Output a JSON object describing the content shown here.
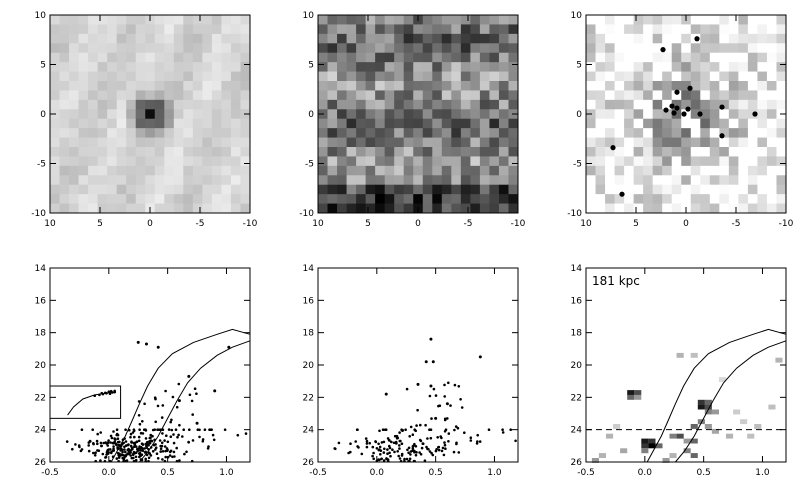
{
  "chart_data": [
    {
      "type": "heatmap",
      "xlim": [
        10,
        -10
      ],
      "ylim": [
        -10,
        10
      ],
      "xticks": [
        "10",
        "5",
        "0",
        "-5",
        "-10"
      ],
      "yticks": [
        "-10",
        "-5",
        "0",
        "5",
        "10"
      ],
      "pattern": "central-peak",
      "peak": [
        0,
        0
      ],
      "grid": 21
    },
    {
      "type": "heatmap",
      "xlim": [
        10,
        -10
      ],
      "ylim": [
        -10,
        10
      ],
      "xticks": [
        "10",
        "5",
        "0",
        "-5",
        "-10"
      ],
      "yticks": [
        "-10",
        "-5",
        "0",
        "5",
        "10"
      ],
      "pattern": "noise",
      "grid": 21
    },
    {
      "type": "heatmap",
      "xlim": [
        10,
        -10
      ],
      "ylim": [
        -10,
        10
      ],
      "xticks": [
        "10",
        "5",
        "0",
        "-5",
        "-10"
      ],
      "yticks": [
        "-10",
        "-5",
        "0",
        "5",
        "10"
      ],
      "pattern": "diffuse-center",
      "grid": 21,
      "points": [
        [
          2.3,
          6.5
        ],
        [
          -1.1,
          7.6
        ],
        [
          0.9,
          2.2
        ],
        [
          -0.4,
          2.6
        ],
        [
          1.4,
          0.8
        ],
        [
          0.9,
          0.6
        ],
        [
          2.0,
          0.4
        ],
        [
          1.2,
          0.1
        ],
        [
          -0.2,
          0.5
        ],
        [
          0.2,
          0.0
        ],
        [
          -1.4,
          0.0
        ],
        [
          -3.6,
          0.7
        ],
        [
          -6.9,
          0.0
        ],
        [
          7.3,
          -3.4
        ],
        [
          -3.6,
          -2.2
        ],
        [
          6.4,
          -8.1
        ]
      ]
    },
    {
      "type": "scatter",
      "xlim": [
        -0.5,
        1.2
      ],
      "ylim": [
        26,
        14
      ],
      "xticks": [
        "-0.5",
        "0.0",
        "0.5",
        "1.0"
      ],
      "yticks": [
        "14",
        "16",
        "18",
        "20",
        "22",
        "24",
        "26"
      ],
      "seed": 11,
      "count": 320,
      "bright": [
        [
          0.25,
          18.6
        ],
        [
          0.32,
          18.7
        ],
        [
          0.42,
          18.9
        ],
        [
          1.02,
          18.9
        ],
        [
          0.6,
          22.2
        ],
        [
          0.75,
          23.6
        ],
        [
          0.9,
          21.6
        ],
        [
          0.68,
          20.7
        ]
      ],
      "isochrones": [
        [
          [
            0.02,
            26.0
          ],
          [
            0.08,
            25.2
          ],
          [
            0.14,
            24.4
          ],
          [
            0.2,
            23.4
          ],
          [
            0.26,
            22.4
          ],
          [
            0.33,
            21.3
          ],
          [
            0.42,
            20.2
          ],
          [
            0.54,
            19.3
          ],
          [
            0.72,
            18.6
          ],
          [
            0.92,
            18.1
          ],
          [
            1.05,
            17.8
          ],
          [
            1.2,
            18.1
          ]
        ],
        [
          [
            0.26,
            26.0
          ],
          [
            0.34,
            25.3
          ],
          [
            0.42,
            24.4
          ],
          [
            0.5,
            23.3
          ],
          [
            0.58,
            22.2
          ],
          [
            0.67,
            21.1
          ],
          [
            0.78,
            20.2
          ],
          [
            0.92,
            19.4
          ],
          [
            1.05,
            18.9
          ],
          [
            1.2,
            18.5
          ]
        ]
      ],
      "inset": {
        "box": [
          [
            -0.5,
            21.3
          ],
          [
            0.1,
            23.3
          ]
        ],
        "points": [
          [
            -0.02,
            21.75
          ],
          [
            0.0,
            21.65
          ],
          [
            0.03,
            21.7
          ],
          [
            -0.05,
            21.8
          ],
          [
            0.02,
            21.62
          ],
          [
            -0.08,
            21.85
          ],
          [
            0.05,
            21.6
          ],
          [
            -0.12,
            21.9
          ],
          [
            -0.03,
            21.72
          ],
          [
            0.01,
            21.78
          ],
          [
            0.05,
            21.68
          ],
          [
            -0.06,
            21.74
          ]
        ],
        "arm": [
          [
            -0.35,
            23.1
          ],
          [
            -0.3,
            22.6
          ],
          [
            -0.22,
            22.1
          ],
          [
            -0.12,
            21.85
          ],
          [
            0.02,
            21.7
          ]
        ]
      }
    },
    {
      "type": "scatter",
      "xlim": [
        -0.5,
        1.2
      ],
      "ylim": [
        26,
        14
      ],
      "xticks": [
        "-0.5",
        "0.0",
        "0.5",
        "1.0"
      ],
      "yticks": [
        "14",
        "16",
        "18",
        "20",
        "22",
        "24",
        "26"
      ],
      "seed": 23,
      "count": 190,
      "bright": [
        [
          0.46,
          18.4
        ],
        [
          0.42,
          19.8
        ],
        [
          0.48,
          19.8
        ],
        [
          0.88,
          19.5
        ],
        [
          0.35,
          21.2
        ],
        [
          0.46,
          21.3
        ],
        [
          0.08,
          21.8
        ],
        [
          0.6,
          22.4
        ],
        [
          0.5,
          23.3
        ]
      ]
    },
    {
      "type": "heatmap",
      "xlim": [
        -0.5,
        1.2
      ],
      "ylim": [
        26,
        14
      ],
      "xticks": [
        "-0.5",
        "0.0",
        "0.5",
        "1.0"
      ],
      "yticks": [
        "14",
        "16",
        "18",
        "20",
        "22",
        "24",
        "26"
      ],
      "annotation": "181 kpc",
      "hline": 24,
      "isochrones": [
        [
          [
            0.02,
            26.0
          ],
          [
            0.08,
            25.2
          ],
          [
            0.14,
            24.4
          ],
          [
            0.2,
            23.4
          ],
          [
            0.26,
            22.4
          ],
          [
            0.33,
            21.3
          ],
          [
            0.42,
            20.2
          ],
          [
            0.54,
            19.3
          ],
          [
            0.72,
            18.6
          ],
          [
            0.92,
            18.1
          ],
          [
            1.05,
            17.8
          ],
          [
            1.2,
            18.1
          ]
        ],
        [
          [
            0.26,
            26.0
          ],
          [
            0.34,
            25.3
          ],
          [
            0.42,
            24.4
          ],
          [
            0.5,
            23.3
          ],
          [
            0.58,
            22.2
          ],
          [
            0.67,
            21.1
          ],
          [
            0.78,
            20.2
          ],
          [
            0.92,
            19.4
          ],
          [
            1.05,
            18.9
          ],
          [
            1.2,
            18.5
          ]
        ]
      ],
      "cells": [
        [
          -0.12,
          21.7,
          0.9
        ],
        [
          -0.06,
          21.7,
          0.7
        ],
        [
          -0.12,
          22.0,
          0.6
        ],
        [
          -0.06,
          22.0,
          0.4
        ],
        [
          0.48,
          22.3,
          0.8
        ],
        [
          0.54,
          22.3,
          0.6
        ],
        [
          0.48,
          22.6,
          0.9
        ],
        [
          0.54,
          22.6,
          0.7
        ],
        [
          0.54,
          22.9,
          0.5
        ],
        [
          0.6,
          22.9,
          0.4
        ],
        [
          0.48,
          23.5,
          0.5
        ],
        [
          0.42,
          23.8,
          0.6
        ],
        [
          0.54,
          23.8,
          0.4
        ],
        [
          0.24,
          24.4,
          0.5
        ],
        [
          0.3,
          24.4,
          0.7
        ],
        [
          0.36,
          24.7,
          0.4
        ],
        [
          0.42,
          24.7,
          0.6
        ],
        [
          0.0,
          24.7,
          0.9
        ],
        [
          0.06,
          24.7,
          0.8
        ],
        [
          0.0,
          25.0,
          0.8
        ],
        [
          0.06,
          25.0,
          1.0
        ],
        [
          0.12,
          25.0,
          0.6
        ],
        [
          0.0,
          25.3,
          0.5
        ],
        [
          0.36,
          25.3,
          0.5
        ],
        [
          0.42,
          25.6,
          0.6
        ],
        [
          0.18,
          25.9,
          0.4
        ],
        [
          -0.36,
          25.6,
          0.3
        ],
        [
          -0.42,
          25.9,
          0.4
        ],
        [
          0.24,
          25.6,
          0.3
        ],
        [
          0.6,
          24.1,
          0.35
        ],
        [
          0.72,
          24.4,
          0.3
        ],
        [
          0.9,
          24.4,
          0.25
        ],
        [
          1.08,
          22.6,
          0.25
        ],
        [
          0.78,
          22.9,
          0.2
        ],
        [
          0.3,
          19.4,
          0.3
        ],
        [
          0.42,
          19.4,
          0.25
        ],
        [
          1.14,
          19.7,
          0.3
        ],
        [
          0.96,
          23.8,
          0.25
        ],
        [
          -0.24,
          23.8,
          0.2
        ],
        [
          -0.3,
          24.4,
          0.3
        ],
        [
          0.66,
          20.9,
          0.15
        ],
        [
          0.84,
          23.5,
          0.2
        ],
        [
          -0.18,
          25.3,
          0.35
        ]
      ]
    }
  ]
}
